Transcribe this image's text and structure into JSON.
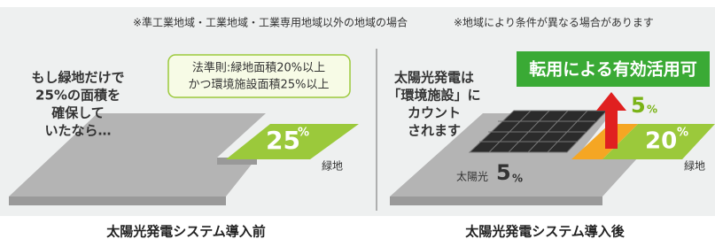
{
  "note": [
    "※準工業地域・工業地域・工業専用地域以外の地域の場合",
    "※地域により条件が異なる場合があります"
  ],
  "before": {
    "lead": [
      "もし緑地だけで",
      "25%の面積を",
      "確保して",
      "いたなら…"
    ],
    "rule": [
      "法準則:緑地面積20%以上",
      "かつ環境施設面積25%以上"
    ],
    "green_value": "25",
    "green_unit": "%",
    "green_label": "緑地",
    "caption": "太陽光発電システム導入前"
  },
  "after": {
    "lead": [
      "太陽光発電は",
      "「環境施設」に",
      "カウント",
      "されます"
    ],
    "banner": "転用による有効活用可",
    "orange_value": "5",
    "orange_unit": "%",
    "green_value": "20",
    "green_unit": "%",
    "green_label": "緑地",
    "solar_label": "太陽光",
    "solar_value": "5",
    "solar_unit": "%",
    "caption": "太陽光発電システム導入後"
  }
}
